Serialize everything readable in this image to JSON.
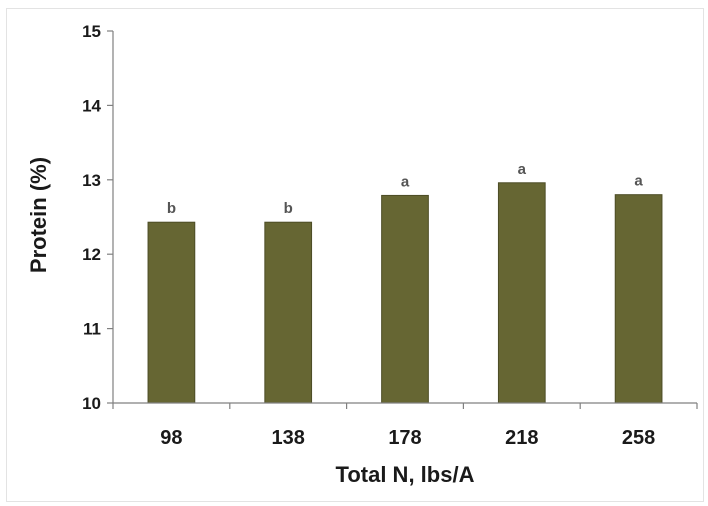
{
  "chart_data": {
    "type": "bar",
    "categories": [
      "98",
      "138",
      "178",
      "218",
      "258"
    ],
    "values": [
      12.43,
      12.43,
      12.79,
      12.96,
      12.8
    ],
    "data_labels": [
      "b",
      "b",
      "a",
      "a",
      "a"
    ],
    "xlabel": "Total N, lbs/A",
    "ylabel": "Protein (%)",
    "ylim": [
      10,
      15
    ],
    "yticks": [
      10,
      11,
      12,
      13,
      14,
      15
    ],
    "grid": false,
    "legend": "none",
    "bar_color": "#666633",
    "bar_border_color": "#4d4d26"
  }
}
